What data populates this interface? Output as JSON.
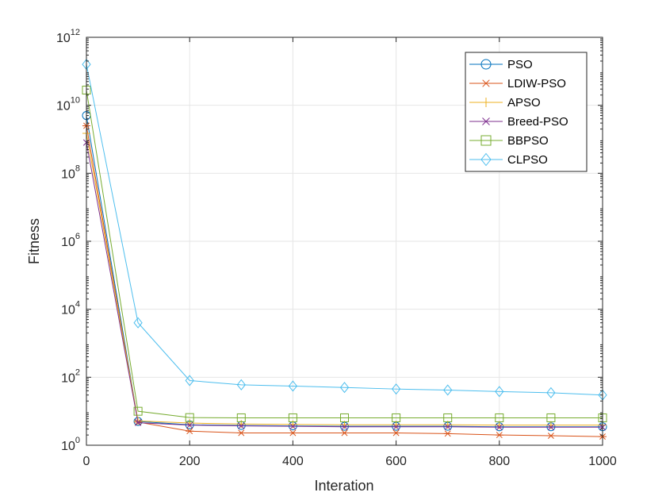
{
  "chart_data": {
    "type": "line",
    "title": "",
    "xlabel": "Interation",
    "ylabel": "Fitness",
    "xlim": [
      0,
      1000
    ],
    "ylim": [
      1,
      1000000000000
    ],
    "yscale": "log",
    "grid": true,
    "legend_position": "top-right",
    "x_ticks": [
      0,
      200,
      400,
      600,
      800,
      1000
    ],
    "x_tick_labels": [
      "0",
      "200",
      "400",
      "600",
      "800",
      "1000"
    ],
    "y_ticks": [
      1,
      100,
      10000,
      1000000,
      100000000,
      10000000000,
      1000000000000
    ],
    "y_tick_labels": [
      {
        "base": "10",
        "exp": "0"
      },
      {
        "base": "10",
        "exp": "2"
      },
      {
        "base": "10",
        "exp": "4"
      },
      {
        "base": "10",
        "exp": "6"
      },
      {
        "base": "10",
        "exp": "8"
      },
      {
        "base": "10",
        "exp": "10"
      },
      {
        "base": "10",
        "exp": "12"
      }
    ],
    "x": [
      0,
      100,
      200,
      300,
      400,
      500,
      600,
      700,
      800,
      900,
      1000
    ],
    "series": [
      {
        "name": "PSO",
        "color": "#0072BD",
        "marker": "circle",
        "values": [
          5000000000,
          5,
          4,
          3.8,
          3.7,
          3.6,
          3.6,
          3.6,
          3.5,
          3.5,
          3.5
        ]
      },
      {
        "name": "LDIW-PSO",
        "color": "#D95319",
        "marker": "asterisk",
        "values": [
          2500000000,
          4.8,
          2.6,
          2.3,
          2.3,
          2.3,
          2.3,
          2.2,
          2.0,
          1.9,
          1.8
        ]
      },
      {
        "name": "APSO",
        "color": "#EDB120",
        "marker": "plus",
        "values": [
          1500000000,
          5.2,
          4.5,
          4.2,
          4.1,
          4.0,
          4.0,
          4.0,
          3.9,
          3.9,
          3.9
        ]
      },
      {
        "name": "Breed-PSO",
        "color": "#7E2F8E",
        "marker": "cross",
        "values": [
          800000000,
          4.6,
          3.9,
          3.7,
          3.6,
          3.5,
          3.5,
          3.5,
          3.4,
          3.4,
          3.4
        ]
      },
      {
        "name": "BBPSO",
        "color": "#77AC30",
        "marker": "square",
        "values": [
          28000000000,
          10,
          6.5,
          6.4,
          6.4,
          6.4,
          6.4,
          6.4,
          6.4,
          6.4,
          6.4
        ]
      },
      {
        "name": "CLPSO",
        "color": "#4DBEEE",
        "marker": "diamond",
        "values": [
          160000000000,
          4000,
          80,
          60,
          55,
          50,
          45,
          42,
          38,
          35,
          30
        ]
      }
    ]
  }
}
